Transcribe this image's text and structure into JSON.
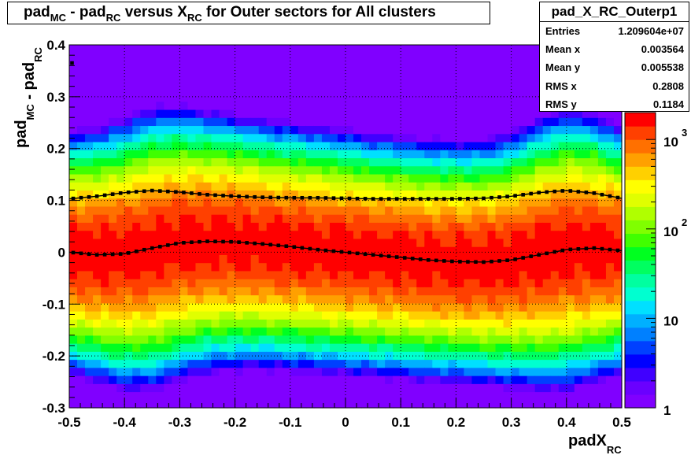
{
  "chart_data": {
    "type": "heatmap",
    "title": {
      "parts": [
        {
          "text": "pad",
          "sub": "MC"
        },
        {
          "text": " - pad",
          "sub": "RC"
        },
        {
          "text": " versus X",
          "sub": "RC"
        },
        {
          "text": " for Outer sectors for All clusters",
          "sub": ""
        }
      ]
    },
    "xlabel": {
      "main": "padX",
      "sub": "RC"
    },
    "ylabel": {
      "parts": [
        {
          "text": "pad",
          "sub": "MC"
        },
        {
          "text": " - pad",
          "sub": "RC"
        }
      ]
    },
    "xlim": [
      -0.5,
      0.5
    ],
    "ylim": [
      -0.3,
      0.4
    ],
    "x_ticks": [
      "-0.5",
      "-0.4",
      "-0.3",
      "-0.2",
      "-0.1",
      "0",
      "0.1",
      "0.2",
      "0.3",
      "0.4",
      "0.5"
    ],
    "y_ticks": [
      "-0.3",
      "-0.2",
      "-0.1",
      "0",
      "0.1",
      "0.2",
      "0.3",
      "0.4"
    ],
    "grid": true,
    "z_scale": "log",
    "zlim": [
      1,
      2000
    ],
    "z_ticks": [
      {
        "value": 1,
        "label": "1",
        "exp": ""
      },
      {
        "value": 10,
        "label": "10",
        "exp": ""
      },
      {
        "value": 100,
        "label": "10",
        "exp": "2"
      },
      {
        "value": 1000,
        "label": "10",
        "exp": "3"
      }
    ],
    "palette": [
      "#8000ff",
      "#6a00ff",
      "#4000ff",
      "#0000ff",
      "#0040ff",
      "#0080ff",
      "#00b0ff",
      "#00e0ff",
      "#00ffd0",
      "#00ffa0",
      "#00ff60",
      "#00ff20",
      "#40ff00",
      "#80ff00",
      "#b0ff00",
      "#e0ff00",
      "#ffff00",
      "#ffd000",
      "#ffa000",
      "#ff7000",
      "#ff4000",
      "#ff0000"
    ],
    "profile_mean": {
      "x": [
        -0.5,
        -0.45,
        -0.4,
        -0.35,
        -0.3,
        -0.25,
        -0.2,
        -0.15,
        -0.1,
        -0.05,
        0.0,
        0.05,
        0.1,
        0.15,
        0.2,
        0.25,
        0.3,
        0.35,
        0.4,
        0.45,
        0.5
      ],
      "y": [
        0.0,
        -0.005,
        -0.003,
        0.008,
        0.018,
        0.021,
        0.02,
        0.016,
        0.011,
        0.005,
        0.0,
        -0.005,
        -0.01,
        -0.015,
        -0.018,
        -0.019,
        -0.015,
        -0.005,
        0.005,
        0.008,
        0.003
      ]
    },
    "profile_rms": {
      "x": [
        -0.5,
        -0.45,
        -0.4,
        -0.35,
        -0.3,
        -0.25,
        -0.2,
        -0.15,
        -0.1,
        -0.05,
        0.0,
        0.05,
        0.1,
        0.15,
        0.2,
        0.25,
        0.3,
        0.35,
        0.4,
        0.45,
        0.5
      ],
      "y": [
        0.103,
        0.108,
        0.115,
        0.119,
        0.116,
        0.111,
        0.108,
        0.106,
        0.105,
        0.105,
        0.104,
        0.103,
        0.103,
        0.103,
        0.103,
        0.104,
        0.108,
        0.115,
        0.119,
        0.114,
        0.104
      ]
    },
    "outlier_points": [
      {
        "x": -0.495,
        "y": 0.365
      }
    ]
  },
  "stats_box": {
    "title": "pad_X_RC_Outerp1",
    "rows": [
      {
        "key": "Entries",
        "value": "1.209604e+07"
      },
      {
        "key": "Mean x",
        "value": "0.003564"
      },
      {
        "key": "Mean y",
        "value": "0.005538"
      },
      {
        "key": "RMS x",
        "value": "0.2808"
      },
      {
        "key": "RMS y",
        "value": "0.1184"
      }
    ]
  }
}
